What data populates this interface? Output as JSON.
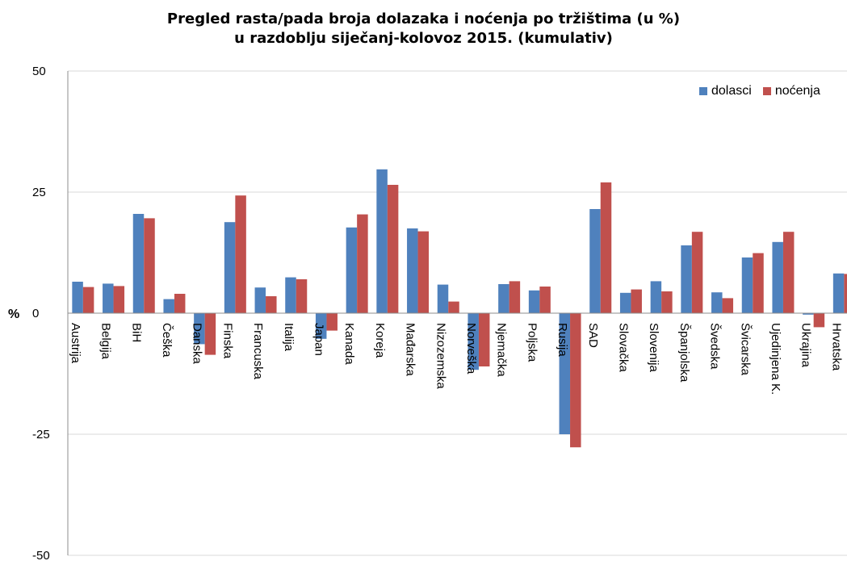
{
  "chart_data": {
    "type": "bar",
    "title_lines": [
      "Pregled rasta/pada broja dolazaka i noćenja po tržištima (u %)",
      "u razdoblju siječanj-kolovoz 2015. (kumulativ)"
    ],
    "ylabel": "%",
    "ylim": [
      -50,
      50
    ],
    "yticks": [
      "50",
      "25",
      "0",
      "-25",
      "-50"
    ],
    "grid": true,
    "legend_position": "top-right",
    "categories": [
      "Austrija",
      "Belgija",
      "BiH",
      "Češka",
      "Danska",
      "Finska",
      "Francuska",
      "Italija",
      "Japan",
      "Kanada",
      "Koreja",
      "Mađarska",
      "Nizozemska",
      "Norveška",
      "Njemačka",
      "Poljska",
      "Rusija",
      "SAD",
      "Slovačka",
      "Slovenija",
      "Španjolska",
      "Švedska",
      "Švicarska",
      "Ujedinjena K.",
      "Ukrajina",
      "Hrvatska"
    ],
    "series": [
      {
        "name": "dolasci",
        "color": "#4F81BD",
        "values": [
          6.5,
          6.1,
          20.5,
          2.9,
          -6.4,
          18.8,
          5.3,
          7.4,
          -5.3,
          17.7,
          29.7,
          17.5,
          5.9,
          -11.7,
          6.0,
          4.7,
          -25.0,
          21.5,
          4.2,
          6.6,
          14.0,
          4.3,
          11.5,
          14.7,
          -0.3,
          8.2
        ]
      },
      {
        "name": "noćenja",
        "color": "#C0504D",
        "values": [
          5.4,
          5.6,
          19.6,
          4.0,
          -8.6,
          24.3,
          3.5,
          7.0,
          -3.6,
          20.4,
          26.5,
          16.9,
          2.4,
          -11.0,
          6.6,
          5.5,
          -27.7,
          27.0,
          4.9,
          4.5,
          16.8,
          3.1,
          12.4,
          16.8,
          -2.9,
          8.1
        ]
      }
    ]
  }
}
